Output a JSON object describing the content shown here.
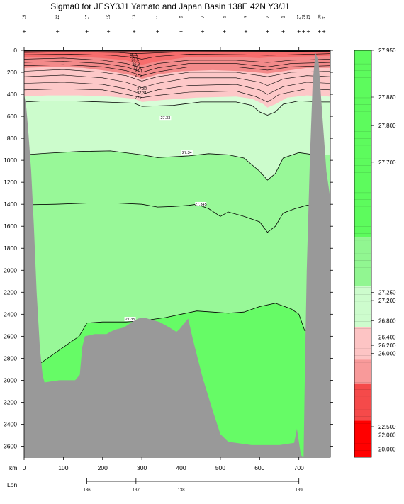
{
  "chart_data": {
    "type": "area",
    "title": "Sigma0 for JESY3J1 Yamato and Japan Basin 138E 42N Y3/J1",
    "xlabel": "km",
    "x2label": "Lon",
    "ylabel": "",
    "xlim": [
      0,
      780
    ],
    "ylim": [
      3700,
      0
    ],
    "x_ticks": [
      0,
      100,
      200,
      300,
      400,
      500,
      600,
      700
    ],
    "y_ticks": [
      0,
      200,
      400,
      600,
      800,
      1000,
      1200,
      1400,
      1600,
      1800,
      2000,
      2200,
      2400,
      2600,
      2800,
      3000,
      3200,
      3400,
      3600
    ],
    "lon_ticks": [
      {
        "km": 160,
        "label": "136"
      },
      {
        "km": 285,
        "label": "137"
      },
      {
        "km": 400,
        "label": "138"
      },
      {
        "km": 700,
        "label": "139"
      }
    ],
    "station_km": [
      0,
      85,
      160,
      215,
      280,
      340,
      400,
      455,
      510,
      565,
      620,
      660,
      700,
      712,
      724,
      752,
      764
    ],
    "station_labels": [
      "19",
      "22",
      "17",
      "15",
      "13",
      "11",
      "9",
      "7",
      "5",
      "3",
      "2",
      "1",
      "27",
      "28",
      "29",
      "30",
      "31"
    ],
    "contours": [
      {
        "label": "27.33",
        "points": [
          [
            0,
            470
          ],
          [
            50,
            460
          ],
          [
            120,
            460
          ],
          [
            200,
            470
          ],
          [
            280,
            480
          ],
          [
            300,
            510
          ],
          [
            380,
            500
          ],
          [
            450,
            470
          ],
          [
            540,
            470
          ],
          [
            580,
            500
          ],
          [
            600,
            560
          ],
          [
            620,
            590
          ],
          [
            640,
            560
          ],
          [
            660,
            490
          ],
          [
            700,
            460
          ],
          [
            760,
            470
          ],
          [
            780,
            470
          ]
        ],
        "label_at": [
          360,
          620
        ]
      },
      {
        "label": "27.34",
        "points": [
          [
            0,
            950
          ],
          [
            60,
            935
          ],
          [
            140,
            920
          ],
          [
            220,
            915
          ],
          [
            300,
            950
          ],
          [
            340,
            975
          ],
          [
            420,
            960
          ],
          [
            470,
            940
          ],
          [
            520,
            950
          ],
          [
            560,
            980
          ],
          [
            600,
            1100
          ],
          [
            620,
            1180
          ],
          [
            640,
            1120
          ],
          [
            660,
            980
          ],
          [
            700,
            930
          ],
          [
            740,
            950
          ],
          [
            780,
            950
          ]
        ],
        "label_at": [
          415,
          935
        ]
      },
      {
        "label": "27.345",
        "points": [
          [
            0,
            1405
          ],
          [
            80,
            1400
          ],
          [
            160,
            1390
          ],
          [
            240,
            1390
          ],
          [
            300,
            1400
          ],
          [
            340,
            1425
          ],
          [
            380,
            1420
          ],
          [
            420,
            1410
          ],
          [
            440,
            1400
          ],
          [
            470,
            1440
          ],
          [
            500,
            1510
          ],
          [
            520,
            1470
          ],
          [
            560,
            1510
          ],
          [
            600,
            1560
          ],
          [
            620,
            1655
          ],
          [
            640,
            1600
          ],
          [
            660,
            1480
          ],
          [
            690,
            1440
          ],
          [
            720,
            1410
          ],
          [
            780,
            1400
          ]
        ],
        "label_at": [
          450,
          1405
        ]
      },
      {
        "label": "27.35",
        "points": [
          [
            40,
            2850
          ],
          [
            80,
            2750
          ],
          [
            140,
            2600
          ],
          [
            160,
            2480
          ],
          [
            200,
            2470
          ],
          [
            260,
            2470
          ],
          [
            300,
            2460
          ],
          [
            360,
            2430
          ],
          [
            400,
            2400
          ],
          [
            440,
            2370
          ],
          [
            480,
            2380
          ],
          [
            520,
            2390
          ],
          [
            560,
            2380
          ],
          [
            600,
            2330
          ],
          [
            640,
            2300
          ],
          [
            680,
            2350
          ],
          [
            700,
            2400
          ],
          [
            715,
            2550
          ],
          [
            780,
            2560
          ]
        ],
        "label_at": [
          270,
          2450
        ]
      }
    ],
    "upper_contours_values": [
      "27.3",
      "27.31",
      "27.32",
      "27.2",
      "27.1",
      "27.0",
      "26.8",
      "26.5",
      "26.2",
      "26.0"
    ],
    "bathymetry_km_depth": [
      [
        0,
        400
      ],
      [
        5,
        500
      ],
      [
        10,
        700
      ],
      [
        18,
        1100
      ],
      [
        25,
        1600
      ],
      [
        32,
        2200
      ],
      [
        40,
        2700
      ],
      [
        47,
        2950
      ],
      [
        52,
        3020
      ],
      [
        90,
        3000
      ],
      [
        130,
        3000
      ],
      [
        142,
        2950
      ],
      [
        148,
        2700
      ],
      [
        155,
        2600
      ],
      [
        180,
        2580
      ],
      [
        210,
        2580
      ],
      [
        220,
        2560
      ],
      [
        232,
        2540
      ],
      [
        255,
        2520
      ],
      [
        275,
        2470
      ],
      [
        290,
        2440
      ],
      [
        305,
        2430
      ],
      [
        325,
        2450
      ],
      [
        345,
        2470
      ],
      [
        370,
        2520
      ],
      [
        388,
        2560
      ],
      [
        395,
        2540
      ],
      [
        408,
        2480
      ],
      [
        418,
        2440
      ],
      [
        430,
        2630
      ],
      [
        455,
        2980
      ],
      [
        480,
        3270
      ],
      [
        500,
        3490
      ],
      [
        520,
        3560
      ],
      [
        580,
        3590
      ],
      [
        650,
        3590
      ],
      [
        688,
        3570
      ],
      [
        695,
        3440
      ],
      [
        705,
        3680
      ],
      [
        712,
        3700
      ],
      [
        715,
        3000
      ],
      [
        720,
        2000
      ],
      [
        728,
        1000
      ],
      [
        735,
        300
      ],
      [
        742,
        20
      ],
      [
        750,
        100
      ],
      [
        760,
        600
      ],
      [
        770,
        1100
      ],
      [
        778,
        1300
      ],
      [
        780,
        1300
      ]
    ],
    "colorbar": {
      "labels": [
        "27.950",
        "27.880",
        "27.800",
        "27.700",
        "27.250",
        "27.200",
        "26.800",
        "26.400",
        "26.200",
        "26.000",
        "22.500",
        "22.000",
        "20.000"
      ],
      "colors": {
        "high": "#5dfb5d",
        "mid": "#91f691",
        "light": "#cdfccd",
        "pink": "#fdc4c4",
        "red": "#f54a4a",
        "deep": "#ff0000"
      }
    },
    "fill_colors": {
      "surface_red": "#f76c6c",
      "pink": "#fdc8c8",
      "light_green": "#d8fdd8",
      "pale_green": "#ccfccc",
      "mid_green": "#98f898",
      "bright_green": "#66fb66",
      "land": "#999999"
    }
  }
}
